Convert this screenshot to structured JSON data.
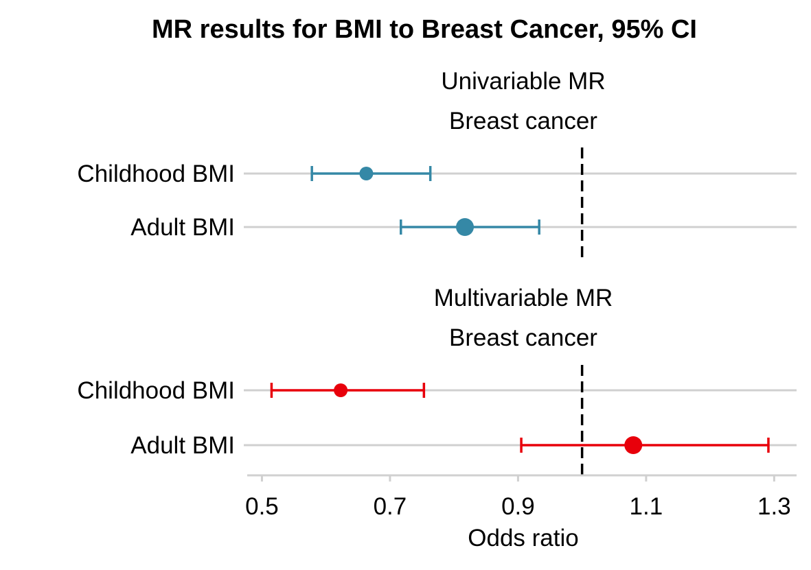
{
  "chart_data": {
    "type": "forest",
    "title": "MR results for BMI to Breast Cancer, 95% CI",
    "xlabel": "Odds ratio",
    "xlim": [
      0.477,
      1.335
    ],
    "x_ticks": [
      0.5,
      0.7,
      0.9,
      1.1,
      1.3
    ],
    "x_tick_labels": [
      "0.5",
      "0.7",
      "0.9",
      "1.1",
      "1.3"
    ],
    "reference_line": 1.0,
    "grid": "horizontal row lines",
    "panels": [
      {
        "label_line1": "Univariable MR",
        "label_line2": "Breast cancer",
        "color": "#3588a6",
        "rows": [
          {
            "label": "Childhood BMI",
            "estimate": 0.663,
            "lower": 0.578,
            "upper": 0.763,
            "size": "small"
          },
          {
            "label": "Adult BMI",
            "estimate": 0.817,
            "lower": 0.717,
            "upper": 0.933,
            "size": "large"
          }
        ]
      },
      {
        "label_line1": "Multivariable MR",
        "label_line2": "Breast cancer",
        "color": "#e8000b",
        "rows": [
          {
            "label": "Childhood BMI",
            "estimate": 0.623,
            "lower": 0.515,
            "upper": 0.753,
            "size": "small"
          },
          {
            "label": "Adult BMI",
            "estimate": 1.08,
            "lower": 0.905,
            "upper": 1.291,
            "size": "large"
          }
        ]
      }
    ]
  }
}
